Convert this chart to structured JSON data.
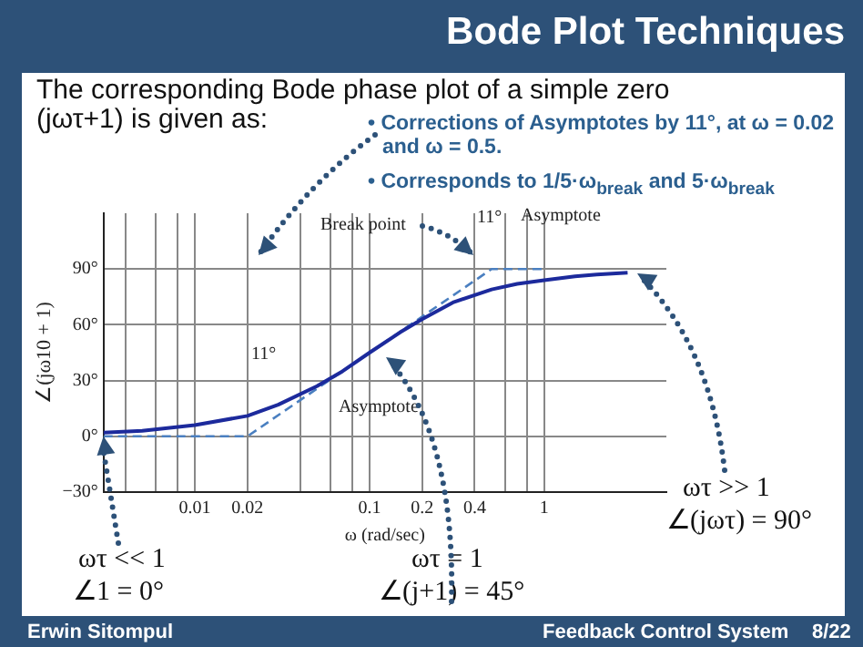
{
  "chart_data": {
    "type": "line",
    "title": "Bode Plot Techniques",
    "subtitle": "The corresponding Bode phase plot of a simple zero (jωτ+1) is given as:",
    "xlabel": "ω (rad/sec)",
    "ylabel": "∠(jω10 + 1)",
    "log": "x",
    "xlim": [
      0.003,
      5
    ],
    "xticks": [
      {
        "value": 0.004,
        "label": null
      },
      {
        "value": 0.006,
        "label": null
      },
      {
        "value": 0.008,
        "label": null
      },
      0.01,
      0.02,
      {
        "value": 0.04,
        "label": null
      },
      {
        "value": 0.06,
        "label": null
      },
      {
        "value": 0.08,
        "label": null
      },
      0.1,
      0.2,
      0.4,
      {
        "value": 0.6,
        "label": null
      },
      {
        "value": 0.8,
        "label": null
      },
      1
    ],
    "ylim": [
      -30,
      120
    ],
    "yticks": [
      {
        "value": -30,
        "label": "−30°"
      },
      {
        "value": 0,
        "label": "0°"
      },
      {
        "value": 30,
        "label": "30°"
      },
      {
        "value": 60,
        "label": "60°"
      },
      {
        "value": 90,
        "label": "90°"
      }
    ],
    "grid": true,
    "legend": false,
    "marker": "none",
    "series": [
      {
        "color": "#1c2a9c",
        "line_style": "solid",
        "x": [
          0.003,
          0.005,
          0.01,
          0.02,
          0.03,
          0.05,
          0.07,
          0.1,
          0.15,
          0.2,
          0.3,
          0.5,
          0.7,
          1,
          1.5,
          2,
          3
        ],
        "values": [
          2,
          3,
          6,
          11,
          17,
          27,
          35,
          45,
          56,
          63,
          72,
          79,
          82,
          84,
          86,
          87,
          88
        ]
      },
      {
        "color": "#4a7fc0",
        "line_style": "dashed",
        "x": [
          0.003,
          0.02,
          0.5,
          1
        ],
        "values": [
          0,
          0,
          90,
          90
        ]
      }
    ],
    "annotations": [
      "• Corrections of Asymptotes by 11°, at ω = 0.02 and ω = 0.5.",
      "• Corresponds to 1/5·ω$_{break}$ and  5·ω$_{break}$",
      "Break point",
      "11°",
      "Asymptote",
      "11°",
      "Asymptote",
      {
        "text": "ωτ << 1",
        "x": 0.003,
        "y": 0
      },
      "∠1 = 0°",
      "ωτ = 1",
      "∠(j+1) = 45°",
      "ωτ >> 1",
      "∠(jωτ) = 90°",
      "Erwin Sitompul",
      "Feedback Control System",
      "8/22"
    ]
  }
}
